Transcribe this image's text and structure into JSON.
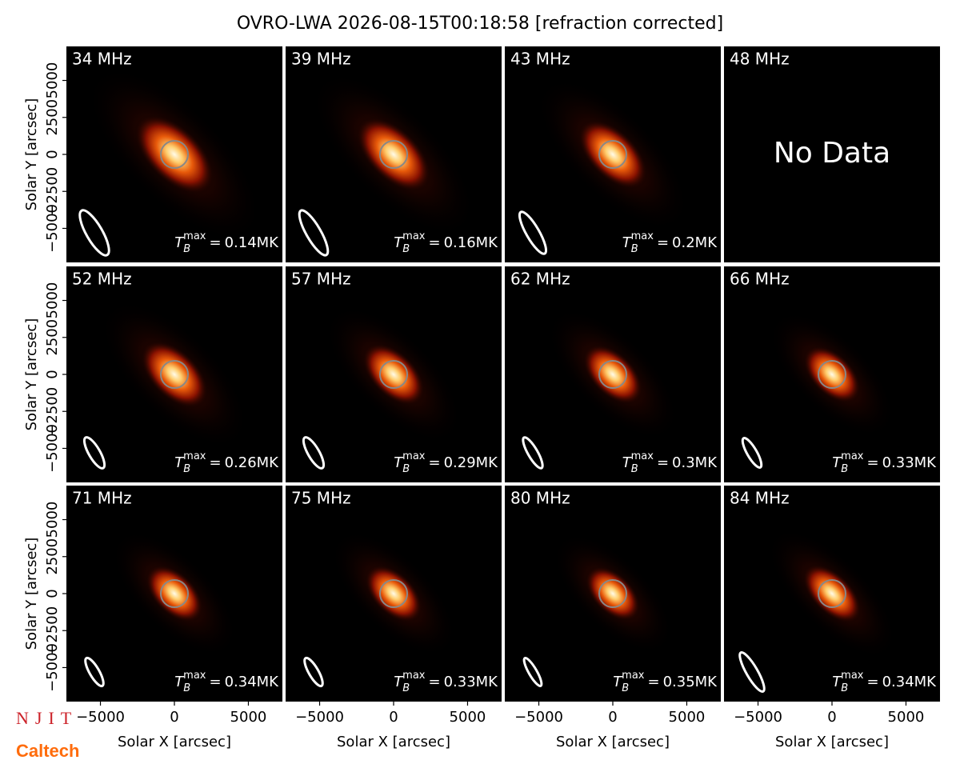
{
  "chart_data": {
    "type": "image-grid",
    "title": "OVRO-LWA 2026-08-15T00:18:58 [refraction corrected]",
    "xlabel": "Solar X [arcsec]",
    "ylabel": "Solar Y [arcsec]",
    "xlim": [
      -7300,
      7300
    ],
    "ylim": [
      -7300,
      7300
    ],
    "xticks": [
      {
        "value": -5000,
        "label": "−5000"
      },
      0,
      5000
    ],
    "yticks": [
      {
        "value": -5000,
        "label": "−5000"
      },
      {
        "value": -2500,
        "label": "−2500"
      },
      0,
      2500,
      5000
    ],
    "categories": [
      "34 MHz",
      "39 MHz",
      "43 MHz",
      "48 MHz",
      "52 MHz",
      "57 MHz",
      "62 MHz",
      "66 MHz",
      "71 MHz",
      "75 MHz",
      "80 MHz",
      "84 MHz"
    ],
    "values": [
      0.14,
      0.16,
      0.2,
      null,
      0.26,
      0.29,
      0.3,
      0.33,
      0.34,
      0.33,
      0.35,
      0.34
    ],
    "value_labels": [
      "0.14MK",
      "0.16MK",
      "0.2MK",
      null,
      "0.26MK",
      "0.29MK",
      "0.3MK",
      "0.33MK",
      "0.34MK",
      "0.33MK",
      "0.35MK",
      "0.34MK"
    ],
    "tb_symbol": {
      "base": "T",
      "sub": "B",
      "sup": "max",
      "eq": "="
    },
    "no_data_text": "No Data",
    "logos": [
      "NJIT",
      "Caltech"
    ],
    "grid": false
  }
}
